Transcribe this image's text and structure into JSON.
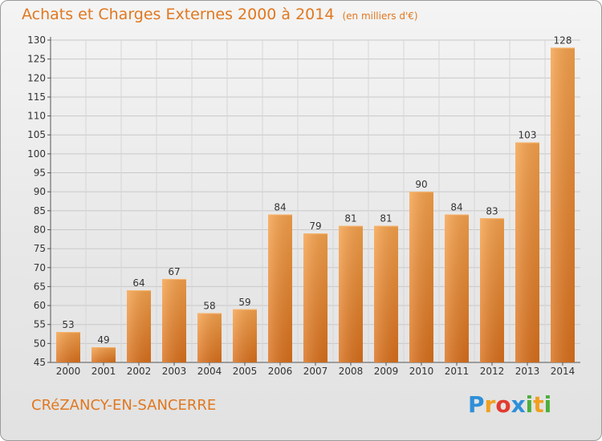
{
  "header": {
    "title": "Achats et Charges Externes 2000 à 2014",
    "subtitle": "(en milliers d'€)"
  },
  "commune": "CRéZANCY-EN-SANCERRE",
  "logo": {
    "letters": [
      "P",
      "r",
      "o",
      "x",
      "i",
      "t",
      "i"
    ],
    "colors": [
      "#2f8fd8",
      "#f0a020",
      "#e23b2e",
      "#2f8fd8",
      "#4caf3c",
      "#f0a020",
      "#4caf3c"
    ]
  },
  "chart_data": {
    "type": "bar",
    "title": "Achats et Charges Externes 2000 à 2014",
    "subtitle": "(en milliers d'€)",
    "categories": [
      "2000",
      "2001",
      "2002",
      "2003",
      "2004",
      "2005",
      "2006",
      "2007",
      "2008",
      "2009",
      "2010",
      "2011",
      "2012",
      "2013",
      "2014"
    ],
    "values": [
      53,
      49,
      64,
      67,
      58,
      59,
      84,
      79,
      81,
      81,
      90,
      84,
      83,
      103,
      128
    ],
    "ylim": [
      45,
      130
    ],
    "yticks": [
      45,
      50,
      55,
      60,
      65,
      70,
      75,
      80,
      85,
      90,
      95,
      100,
      105,
      110,
      115,
      120,
      125,
      130
    ],
    "grid": true,
    "bar_color": "#f0862a",
    "xlabel": "",
    "ylabel": ""
  }
}
